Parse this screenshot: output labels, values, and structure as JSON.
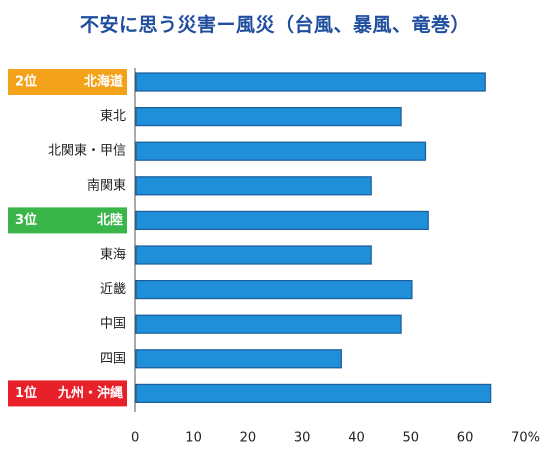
{
  "chart_data": {
    "type": "bar",
    "orientation": "horizontal",
    "title": "不安に思う災害ー風災（台風、暴風、竜巻）",
    "categories": [
      "北海道",
      "東北",
      "北関東・甲信",
      "南関東",
      "北陸",
      "東海",
      "近畿",
      "中国",
      "四国",
      "九州・沖縄"
    ],
    "values": [
      64.5,
      49,
      53.5,
      43.5,
      54,
      43.5,
      51,
      49,
      38,
      65.5
    ],
    "ranks": [
      {
        "index": 0,
        "label": "2位",
        "color": "#f5a21b"
      },
      {
        "index": 4,
        "label": "3位",
        "color": "#39b54a"
      },
      {
        "index": 9,
        "label": "1位",
        "color": "#e8202a"
      }
    ],
    "xlim": [
      0,
      70
    ],
    "x_ticks": [
      "0",
      "10",
      "20",
      "30",
      "40",
      "50",
      "60",
      "70%"
    ],
    "bar_color": "#1f8fd9",
    "title_color": "#1f4e9e",
    "grid": false
  }
}
